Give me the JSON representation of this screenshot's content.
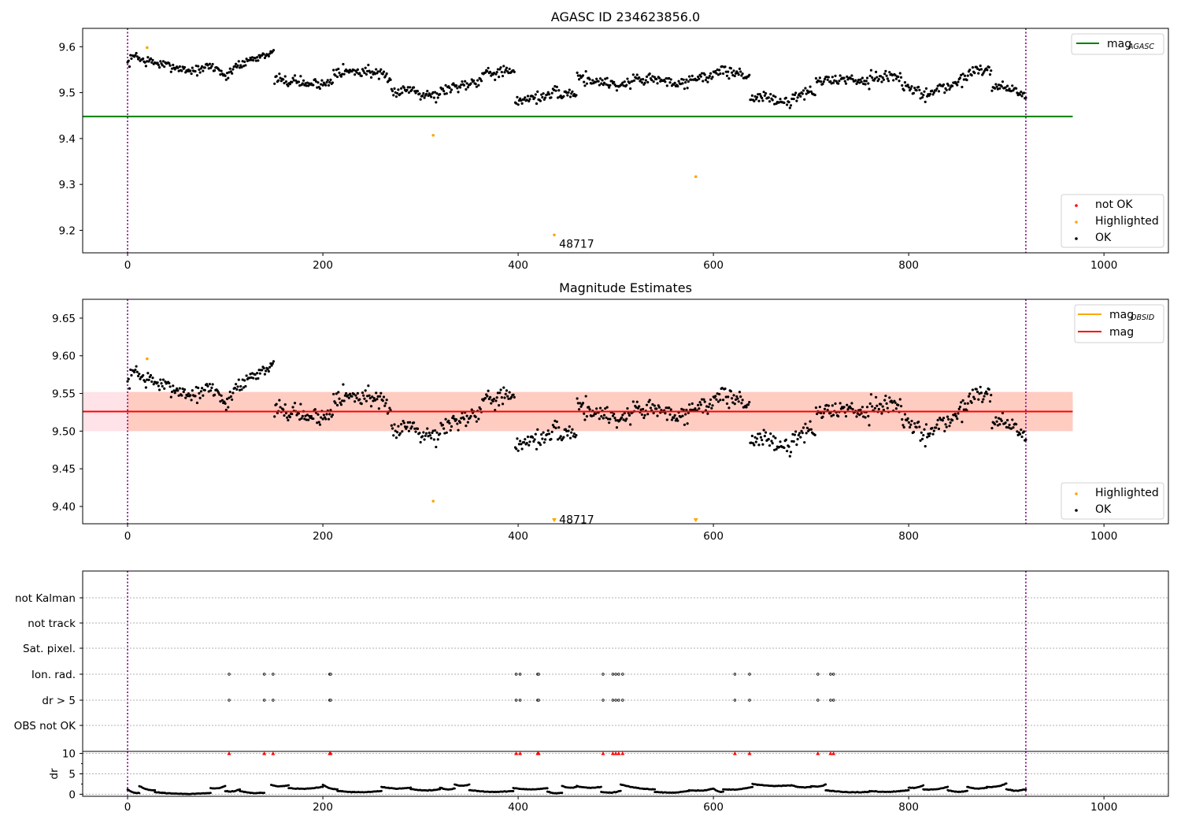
{
  "colors": {
    "ok": "#000000",
    "highlighted": "#ffa500",
    "not_ok": "#ff0000",
    "agasc_line": "#008000",
    "mag_line": "#ff0000",
    "mag_obsid_line": "#ffa500",
    "band_outer": "#ffc0cb",
    "band_inner": "#ffa07a",
    "event_line": "#800080"
  },
  "chart_data": [
    {
      "id": "panel1",
      "type": "scatter",
      "title": "AGASC ID 234623856.0",
      "xlim": [
        -46,
        1066
      ],
      "ylim": [
        9.151,
        9.64
      ],
      "xticks": [
        0,
        200,
        400,
        600,
        800,
        1000
      ],
      "yticks": [
        9.2,
        9.3,
        9.4,
        9.5,
        9.6
      ],
      "vlines": [
        0,
        920
      ],
      "hline": {
        "label_main": "mag",
        "label_sub": "AGASC",
        "value": 9.448,
        "x_range": [
          -46,
          968
        ]
      },
      "annotations": [
        {
          "text": "48717",
          "x": 442,
          "y": 9.171
        }
      ],
      "highlighted_points": [
        [
          20,
          9.598
        ],
        [
          313,
          9.407
        ],
        [
          437,
          9.19
        ],
        [
          582,
          9.317
        ]
      ],
      "legend_upper": [
        {
          "label_main": "mag",
          "label_sub": "AGASC",
          "marker": "line",
          "color": "#008000"
        }
      ],
      "legend_lower": [
        {
          "label": "not OK",
          "color": "#ff0000"
        },
        {
          "label": "Highlighted",
          "color": "#ffa500"
        },
        {
          "label": "OK",
          "color": "#000000"
        }
      ],
      "ok_series": {
        "n": 930,
        "x_end": 920,
        "clusters": [
          [
            0,
            9.563,
            9.588,
            0.008
          ],
          [
            10,
            9.574,
            9.567,
            0.008
          ],
          [
            20,
            9.57,
            9.558,
            0.008
          ],
          [
            40,
            9.56,
            9.55,
            0.007
          ],
          [
            60,
            9.548,
            9.55,
            0.007
          ],
          [
            80,
            9.56,
            9.55,
            0.008
          ],
          [
            95,
            9.548,
            9.528,
            0.009
          ],
          [
            103,
            9.545,
            9.565,
            0.008
          ],
          [
            115,
            9.558,
            9.578,
            0.008
          ],
          [
            130,
            9.57,
            9.588,
            0.006
          ],
          [
            140,
            9.582,
            9.586,
            0.005
          ],
          [
            150,
            9.53,
            9.522,
            0.008
          ],
          [
            170,
            9.53,
            9.515,
            0.009
          ],
          [
            185,
            9.52,
            9.52,
            0.008
          ],
          [
            200,
            9.518,
            9.525,
            0.009
          ],
          [
            210,
            9.55,
            9.545,
            0.01
          ],
          [
            230,
            9.545,
            9.548,
            0.01
          ],
          [
            250,
            9.545,
            9.532,
            0.008
          ],
          [
            265,
            9.535,
            9.498,
            0.009
          ],
          [
            275,
            9.5,
            9.51,
            0.009
          ],
          [
            290,
            9.51,
            9.495,
            0.009
          ],
          [
            305,
            9.5,
            9.49,
            0.009
          ],
          [
            320,
            9.505,
            9.515,
            0.009
          ],
          [
            340,
            9.515,
            9.525,
            0.01
          ],
          [
            355,
            9.52,
            9.55,
            0.009
          ],
          [
            370,
            9.545,
            9.545,
            0.01
          ],
          [
            390,
            9.545,
            9.54,
            0.009
          ],
          [
            397,
            9.478,
            9.49,
            0.009
          ],
          [
            410,
            9.49,
            9.49,
            0.008
          ],
          [
            425,
            9.49,
            9.502,
            0.008
          ],
          [
            440,
            9.495,
            9.5,
            0.008
          ],
          [
            460,
            9.535,
            9.525,
            0.01
          ],
          [
            480,
            9.525,
            9.52,
            0.009
          ],
          [
            500,
            9.515,
            9.52,
            0.009
          ],
          [
            515,
            9.53,
            9.53,
            0.01
          ],
          [
            540,
            9.53,
            9.52,
            0.009
          ],
          [
            560,
            9.525,
            9.52,
            0.01
          ],
          [
            575,
            9.535,
            9.53,
            0.008
          ],
          [
            590,
            9.535,
            9.545,
            0.01
          ],
          [
            610,
            9.548,
            9.54,
            0.01
          ],
          [
            630,
            9.535,
            9.535,
            0.01
          ],
          [
            637,
            9.49,
            9.49,
            0.008
          ],
          [
            650,
            9.49,
            9.485,
            0.009
          ],
          [
            665,
            9.478,
            9.48,
            0.008
          ],
          [
            680,
            9.49,
            9.5,
            0.009
          ],
          [
            695,
            9.5,
            9.5,
            0.008
          ],
          [
            705,
            9.525,
            9.525,
            0.008
          ],
          [
            720,
            9.528,
            9.53,
            0.008
          ],
          [
            740,
            9.53,
            9.525,
            0.009
          ],
          [
            760,
            9.535,
            9.535,
            0.01
          ],
          [
            780,
            9.535,
            9.535,
            0.008
          ],
          [
            793,
            9.51,
            9.505,
            0.01
          ],
          [
            810,
            9.495,
            9.505,
            0.01
          ],
          [
            830,
            9.51,
            9.515,
            0.01
          ],
          [
            845,
            9.52,
            9.53,
            0.01
          ],
          [
            860,
            9.545,
            9.555,
            0.01
          ],
          [
            875,
            9.55,
            9.545,
            0.01
          ],
          [
            885,
            9.51,
            9.52,
            0.008
          ],
          [
            900,
            9.51,
            9.5,
            0.008
          ],
          [
            910,
            9.5,
            9.495,
            0.008
          ]
        ]
      },
      "position": "upper"
    },
    {
      "id": "panel2",
      "type": "scatter",
      "title": "Magnitude Estimates",
      "xlim": [
        -46,
        1066
      ],
      "ylim": [
        9.377,
        9.675
      ],
      "xticks": [
        0,
        200,
        400,
        600,
        800,
        1000
      ],
      "yticks": [
        9.4,
        9.45,
        9.5,
        9.55,
        9.6,
        9.65
      ],
      "ytick_labels": [
        "9.40",
        "9.45",
        "9.50",
        "9.55",
        "9.60",
        "9.65"
      ],
      "vlines": [
        0,
        920
      ],
      "mag_value": 9.526,
      "bands": {
        "outer": [
          9.5,
          9.552
        ],
        "inner": [
          9.5,
          9.552
        ],
        "x_range": [
          -46,
          968
        ],
        "inner_x_range": [
          0,
          968
        ]
      },
      "annotations": [
        {
          "text": "48717",
          "x": 442,
          "y": 9.383
        }
      ],
      "highlighted_points": [
        [
          20,
          9.596
        ],
        [
          313,
          9.407
        ]
      ],
      "highlighted_triangles": [
        437,
        582
      ],
      "legend_upper": [
        {
          "label_main": "mag",
          "label_sub": "OBSID",
          "marker": "line",
          "color": "#ffa500"
        },
        {
          "label_main": "mag",
          "label_sub": "",
          "marker": "line",
          "color": "#ff0000"
        }
      ],
      "legend_lower": [
        {
          "label": "Highlighted",
          "color": "#ffa500"
        },
        {
          "label": "OK",
          "color": "#000000"
        }
      ],
      "ok_series_ref": "panel1"
    },
    {
      "id": "panel3",
      "type": "scatter",
      "xlim": [
        -46,
        1066
      ],
      "categories": [
        "not Kalman",
        "not track",
        "Sat. pixel.",
        "Ion. rad.",
        "dr > 5",
        "OBS not OK"
      ],
      "vlines": [
        0,
        920
      ],
      "flag_points": {
        "Ion. rad.": [
          104,
          140,
          149,
          207,
          208,
          398,
          402,
          420,
          421,
          487,
          497,
          500,
          503,
          507,
          622,
          637,
          707,
          720,
          723
        ],
        "dr > 5": [
          104,
          140,
          149,
          207,
          208,
          398,
          402,
          420,
          421,
          487,
          497,
          500,
          503,
          507,
          622,
          637,
          707,
          720,
          723
        ]
      }
    },
    {
      "id": "panel4",
      "type": "scatter",
      "xlim": [
        -46,
        1066
      ],
      "ylim": [
        -0.5,
        10.5
      ],
      "ylabel": "dr",
      "yticks": [
        0,
        5,
        10
      ],
      "xticks": [
        0,
        200,
        400,
        600,
        800,
        1000
      ],
      "vlines": [
        0,
        920
      ],
      "red_markers": [
        104,
        140,
        149,
        207,
        208,
        398,
        402,
        420,
        421,
        487,
        497,
        500,
        503,
        507,
        622,
        637,
        707,
        720,
        723
      ],
      "dr_segments": [
        [
          0,
          12,
          1.2,
          0.3
        ],
        [
          12,
          28,
          2.0,
          1.0
        ],
        [
          28,
          85,
          0.5,
          0.3
        ],
        [
          85,
          100,
          1.5,
          2.0
        ],
        [
          100,
          115,
          0.8,
          1.2
        ],
        [
          115,
          140,
          0.8,
          0.4
        ],
        [
          147,
          165,
          2.3,
          2.2
        ],
        [
          165,
          200,
          1.5,
          1.8
        ],
        [
          200,
          215,
          2.3,
          1.2
        ],
        [
          215,
          260,
          0.8,
          0.8
        ],
        [
          260,
          290,
          1.8,
          1.6
        ],
        [
          290,
          320,
          1.3,
          1.2
        ],
        [
          320,
          335,
          1.6,
          1.4
        ],
        [
          335,
          350,
          2.4,
          2.4
        ],
        [
          350,
          395,
          1.0,
          0.8
        ],
        [
          395,
          430,
          1.5,
          1.5
        ],
        [
          430,
          445,
          0.7,
          0.4
        ],
        [
          445,
          460,
          2.0,
          1.8
        ],
        [
          460,
          485,
          2.0,
          1.8
        ],
        [
          485,
          505,
          0.6,
          0.8
        ],
        [
          505,
          540,
          2.4,
          1.2
        ],
        [
          540,
          575,
          0.6,
          0.8
        ],
        [
          575,
          600,
          1.0,
          1.4
        ],
        [
          600,
          610,
          1.4,
          0.6
        ],
        [
          610,
          640,
          1.2,
          1.8
        ],
        [
          640,
          680,
          2.5,
          2.2
        ],
        [
          680,
          700,
          2.2,
          1.8
        ],
        [
          700,
          715,
          2.0,
          2.4
        ],
        [
          715,
          760,
          1.0,
          0.6
        ],
        [
          760,
          800,
          0.8,
          1.0
        ],
        [
          800,
          815,
          1.6,
          2.2
        ],
        [
          815,
          840,
          1.2,
          1.8
        ],
        [
          840,
          860,
          1.0,
          0.8
        ],
        [
          860,
          880,
          1.8,
          1.6
        ],
        [
          880,
          900,
          1.8,
          2.6
        ],
        [
          900,
          920,
          1.2,
          1.2
        ]
      ]
    }
  ]
}
